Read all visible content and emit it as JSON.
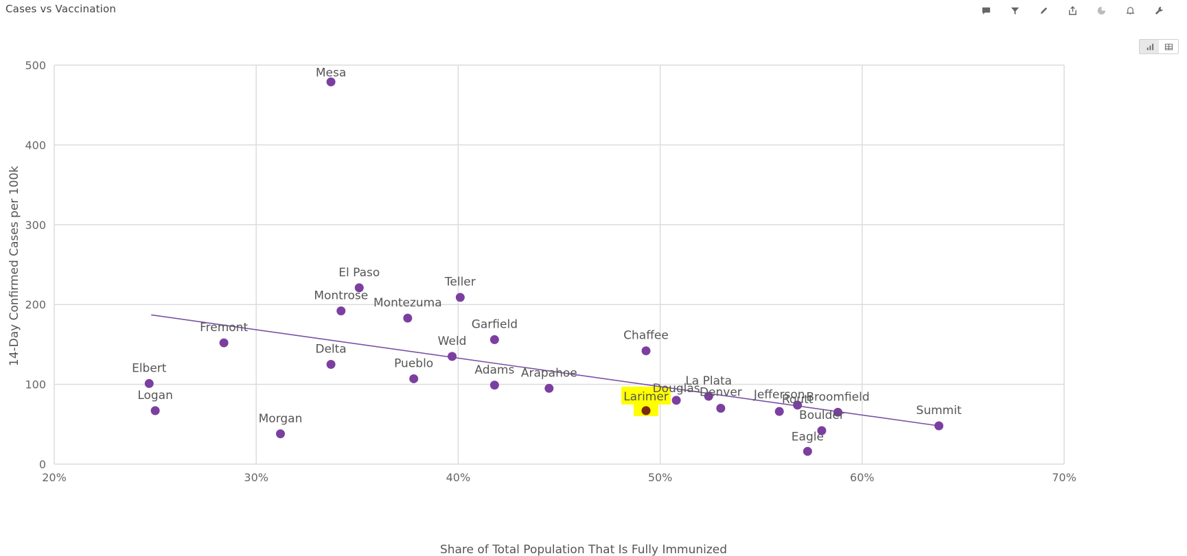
{
  "header": {
    "title": "Cases vs Vaccination"
  },
  "toolbar": {
    "icons": [
      "comment-icon",
      "filter-icon",
      "pencil-icon",
      "share-icon",
      "pie-icon",
      "bell-icon",
      "wrench-icon"
    ]
  },
  "view_toggle": {
    "options": [
      "chart-view-icon",
      "table-view-icon"
    ],
    "selected": "chart-view-icon"
  },
  "colors": {
    "point": "#7b3fa0",
    "trend": "#7b4fa6",
    "highlight_bg": "#ffff00",
    "highlight_point": "#7a2a10",
    "grid": "#dcdcdc"
  },
  "chart_data": {
    "type": "scatter",
    "xlabel": "Share of Total Population That Is Fully Immunized",
    "ylabel": "14-Day Confirmed Cases per 100k",
    "xlim": [
      0.2,
      0.7
    ],
    "ylim": [
      0,
      500
    ],
    "x_ticks": [
      0.2,
      0.3,
      0.4,
      0.5,
      0.6,
      0.7
    ],
    "x_tick_labels": [
      "20%",
      "30%",
      "40%",
      "50%",
      "60%",
      "70%"
    ],
    "y_ticks": [
      0,
      100,
      200,
      300,
      400,
      500
    ],
    "y_tick_labels": [
      "0",
      "100",
      "200",
      "300",
      "400",
      "500"
    ],
    "grid": true,
    "highlight": "Larimer",
    "trendline": [
      [
        0.248,
        187
      ],
      [
        0.638,
        48
      ]
    ],
    "points": [
      {
        "label": "Mesa",
        "x": 0.337,
        "y": 479
      },
      {
        "label": "El Paso",
        "x": 0.351,
        "y": 221
      },
      {
        "label": "Teller",
        "x": 0.401,
        "y": 209
      },
      {
        "label": "Montrose",
        "x": 0.342,
        "y": 192
      },
      {
        "label": "Montezuma",
        "x": 0.375,
        "y": 183
      },
      {
        "label": "Fremont",
        "x": 0.284,
        "y": 152
      },
      {
        "label": "Garfield",
        "x": 0.418,
        "y": 156
      },
      {
        "label": "Chaffee",
        "x": 0.493,
        "y": 142
      },
      {
        "label": "Weld",
        "x": 0.397,
        "y": 135
      },
      {
        "label": "Delta",
        "x": 0.337,
        "y": 125
      },
      {
        "label": "Pueblo",
        "x": 0.378,
        "y": 107
      },
      {
        "label": "Elbert",
        "x": 0.247,
        "y": 101
      },
      {
        "label": "Adams",
        "x": 0.418,
        "y": 99
      },
      {
        "label": "Arapahoe",
        "x": 0.445,
        "y": 95
      },
      {
        "label": "La Plata",
        "x": 0.524,
        "y": 85
      },
      {
        "label": "Douglas",
        "x": 0.508,
        "y": 80
      },
      {
        "label": "Routt",
        "x": 0.568,
        "y": 74
      },
      {
        "label": "Denver",
        "x": 0.53,
        "y": 70
      },
      {
        "label": "Larimer",
        "x": 0.493,
        "y": 67
      },
      {
        "label": "Logan",
        "x": 0.25,
        "y": 67
      },
      {
        "label": "Jefferson",
        "x": 0.559,
        "y": 66
      },
      {
        "label": "Broomfield",
        "x": 0.588,
        "y": 65
      },
      {
        "label": "Summit",
        "x": 0.638,
        "y": 48
      },
      {
        "label": "Boulder",
        "x": 0.58,
        "y": 42
      },
      {
        "label": "Morgan",
        "x": 0.312,
        "y": 38
      },
      {
        "label": "Eagle",
        "x": 0.573,
        "y": 16
      }
    ]
  }
}
